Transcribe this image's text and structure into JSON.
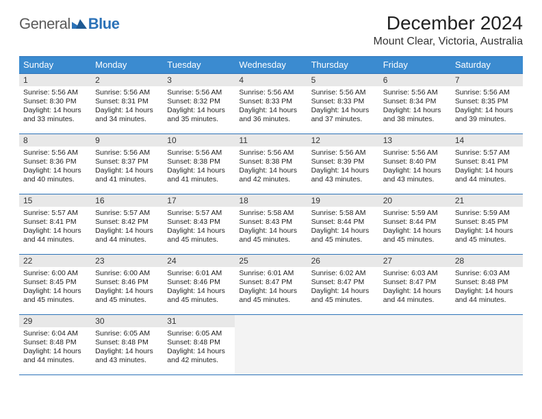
{
  "logo": {
    "word1": "General",
    "word2": "Blue"
  },
  "title": "December 2024",
  "subtitle": "Mount Clear, Victoria, Australia",
  "colors": {
    "header_bg": "#3b8bd0",
    "header_text": "#ffffff",
    "border": "#2b72b8",
    "daynum_bg": "#e8e8e8",
    "empty_bg": "#f3f3f3",
    "logo_gray": "#5a5a5a",
    "logo_blue": "#2b72b8"
  },
  "weekdays": [
    "Sunday",
    "Monday",
    "Tuesday",
    "Wednesday",
    "Thursday",
    "Friday",
    "Saturday"
  ],
  "days": [
    {
      "n": "1",
      "sr": "5:56 AM",
      "ss": "8:30 PM",
      "dl": "14 hours and 33 minutes."
    },
    {
      "n": "2",
      "sr": "5:56 AM",
      "ss": "8:31 PM",
      "dl": "14 hours and 34 minutes."
    },
    {
      "n": "3",
      "sr": "5:56 AM",
      "ss": "8:32 PM",
      "dl": "14 hours and 35 minutes."
    },
    {
      "n": "4",
      "sr": "5:56 AM",
      "ss": "8:33 PM",
      "dl": "14 hours and 36 minutes."
    },
    {
      "n": "5",
      "sr": "5:56 AM",
      "ss": "8:33 PM",
      "dl": "14 hours and 37 minutes."
    },
    {
      "n": "6",
      "sr": "5:56 AM",
      "ss": "8:34 PM",
      "dl": "14 hours and 38 minutes."
    },
    {
      "n": "7",
      "sr": "5:56 AM",
      "ss": "8:35 PM",
      "dl": "14 hours and 39 minutes."
    },
    {
      "n": "8",
      "sr": "5:56 AM",
      "ss": "8:36 PM",
      "dl": "14 hours and 40 minutes."
    },
    {
      "n": "9",
      "sr": "5:56 AM",
      "ss": "8:37 PM",
      "dl": "14 hours and 41 minutes."
    },
    {
      "n": "10",
      "sr": "5:56 AM",
      "ss": "8:38 PM",
      "dl": "14 hours and 41 minutes."
    },
    {
      "n": "11",
      "sr": "5:56 AM",
      "ss": "8:38 PM",
      "dl": "14 hours and 42 minutes."
    },
    {
      "n": "12",
      "sr": "5:56 AM",
      "ss": "8:39 PM",
      "dl": "14 hours and 43 minutes."
    },
    {
      "n": "13",
      "sr": "5:56 AM",
      "ss": "8:40 PM",
      "dl": "14 hours and 43 minutes."
    },
    {
      "n": "14",
      "sr": "5:57 AM",
      "ss": "8:41 PM",
      "dl": "14 hours and 44 minutes."
    },
    {
      "n": "15",
      "sr": "5:57 AM",
      "ss": "8:41 PM",
      "dl": "14 hours and 44 minutes."
    },
    {
      "n": "16",
      "sr": "5:57 AM",
      "ss": "8:42 PM",
      "dl": "14 hours and 44 minutes."
    },
    {
      "n": "17",
      "sr": "5:57 AM",
      "ss": "8:43 PM",
      "dl": "14 hours and 45 minutes."
    },
    {
      "n": "18",
      "sr": "5:58 AM",
      "ss": "8:43 PM",
      "dl": "14 hours and 45 minutes."
    },
    {
      "n": "19",
      "sr": "5:58 AM",
      "ss": "8:44 PM",
      "dl": "14 hours and 45 minutes."
    },
    {
      "n": "20",
      "sr": "5:59 AM",
      "ss": "8:44 PM",
      "dl": "14 hours and 45 minutes."
    },
    {
      "n": "21",
      "sr": "5:59 AM",
      "ss": "8:45 PM",
      "dl": "14 hours and 45 minutes."
    },
    {
      "n": "22",
      "sr": "6:00 AM",
      "ss": "8:45 PM",
      "dl": "14 hours and 45 minutes."
    },
    {
      "n": "23",
      "sr": "6:00 AM",
      "ss": "8:46 PM",
      "dl": "14 hours and 45 minutes."
    },
    {
      "n": "24",
      "sr": "6:01 AM",
      "ss": "8:46 PM",
      "dl": "14 hours and 45 minutes."
    },
    {
      "n": "25",
      "sr": "6:01 AM",
      "ss": "8:47 PM",
      "dl": "14 hours and 45 minutes."
    },
    {
      "n": "26",
      "sr": "6:02 AM",
      "ss": "8:47 PM",
      "dl": "14 hours and 45 minutes."
    },
    {
      "n": "27",
      "sr": "6:03 AM",
      "ss": "8:47 PM",
      "dl": "14 hours and 44 minutes."
    },
    {
      "n": "28",
      "sr": "6:03 AM",
      "ss": "8:48 PM",
      "dl": "14 hours and 44 minutes."
    },
    {
      "n": "29",
      "sr": "6:04 AM",
      "ss": "8:48 PM",
      "dl": "14 hours and 44 minutes."
    },
    {
      "n": "30",
      "sr": "6:05 AM",
      "ss": "8:48 PM",
      "dl": "14 hours and 43 minutes."
    },
    {
      "n": "31",
      "sr": "6:05 AM",
      "ss": "8:48 PM",
      "dl": "14 hours and 42 minutes."
    }
  ],
  "labels": {
    "sunrise": "Sunrise:",
    "sunset": "Sunset:",
    "daylight": "Daylight:"
  },
  "layout": {
    "start_offset": 0,
    "total_cells": 35
  }
}
